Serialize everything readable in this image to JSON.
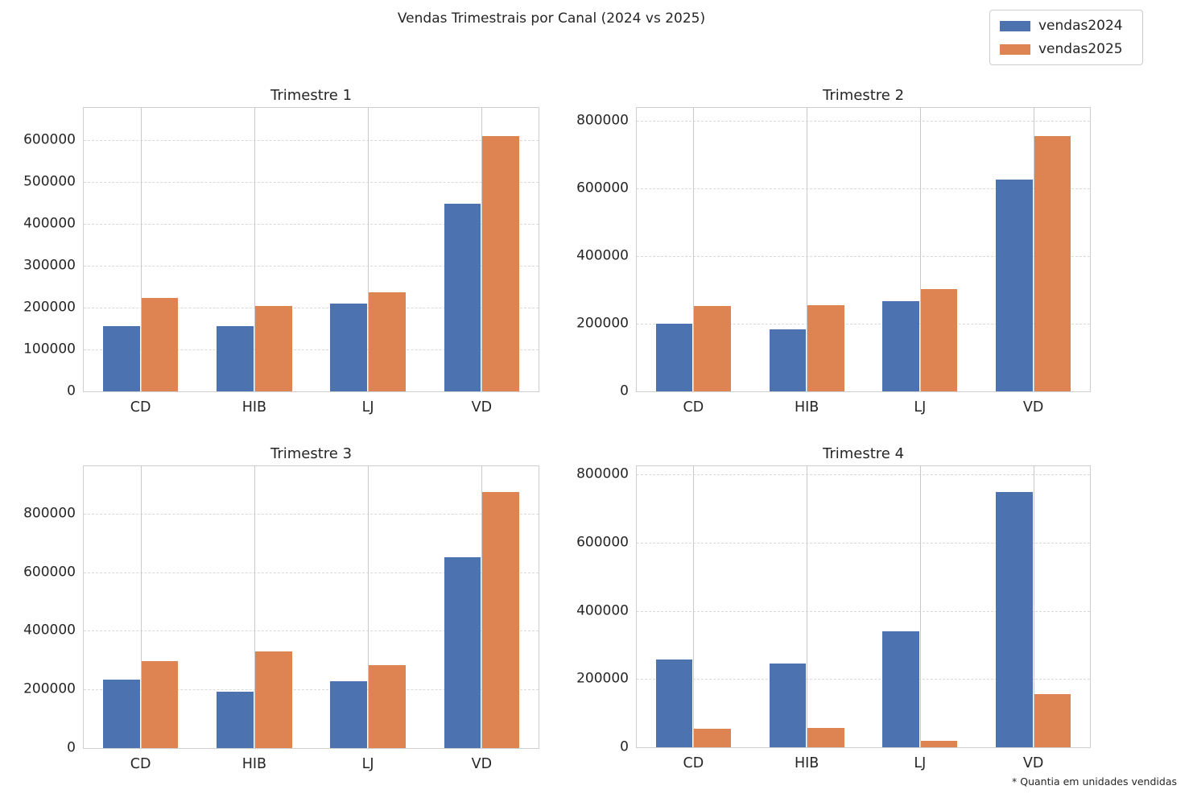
{
  "figure": {
    "title": "Vendas Trimestrais por Canal (2024 vs 2025)",
    "footnote": "* Quantia em unidades vendidas"
  },
  "legend": {
    "position": "top-right",
    "items": [
      {
        "label": "vendas2024",
        "color": "#4C72B0"
      },
      {
        "label": "vendas2025",
        "color": "#DD8452"
      }
    ]
  },
  "style": {
    "grid_x": "solid",
    "grid_y": "dashed",
    "grid_color": "#cccccc",
    "text_color": "#262626",
    "background": "#ffffff"
  },
  "chart_data": [
    {
      "type": "bar",
      "title": "Trimestre 1",
      "categories": [
        "CD",
        "HIB",
        "LJ",
        "VD"
      ],
      "series": [
        {
          "name": "vendas2024",
          "color": "#4C72B0",
          "values": [
            155000,
            155000,
            209000,
            449000
          ]
        },
        {
          "name": "vendas2025",
          "color": "#DD8452",
          "values": [
            223000,
            204000,
            236000,
            609000
          ]
        }
      ],
      "xlabel": "",
      "ylabel": "",
      "yticks": [
        0,
        100000,
        200000,
        300000,
        400000,
        500000,
        600000
      ],
      "ylim": [
        0,
        677000
      ],
      "grid": true
    },
    {
      "type": "bar",
      "title": "Trimestre 2",
      "categories": [
        "CD",
        "HIB",
        "LJ",
        "VD"
      ],
      "series": [
        {
          "name": "vendas2024",
          "color": "#4C72B0",
          "values": [
            200000,
            184000,
            267000,
            626000
          ]
        },
        {
          "name": "vendas2025",
          "color": "#DD8452",
          "values": [
            252000,
            254000,
            301000,
            755000
          ]
        }
      ],
      "xlabel": "",
      "ylabel": "",
      "yticks": [
        0,
        200000,
        400000,
        600000,
        800000
      ],
      "ylim": [
        0,
        837000
      ],
      "grid": true
    },
    {
      "type": "bar",
      "title": "Trimestre 3",
      "categories": [
        "CD",
        "HIB",
        "LJ",
        "VD"
      ],
      "series": [
        {
          "name": "vendas2024",
          "color": "#4C72B0",
          "values": [
            234000,
            193000,
            228000,
            652000
          ]
        },
        {
          "name": "vendas2025",
          "color": "#DD8452",
          "values": [
            297000,
            330000,
            284000,
            873000
          ]
        }
      ],
      "xlabel": "",
      "ylabel": "",
      "yticks": [
        0,
        200000,
        400000,
        600000,
        800000
      ],
      "ylim": [
        0,
        962000
      ],
      "grid": true
    },
    {
      "type": "bar",
      "title": "Trimestre 4",
      "categories": [
        "CD",
        "HIB",
        "LJ",
        "VD"
      ],
      "series": [
        {
          "name": "vendas2024",
          "color": "#4C72B0",
          "values": [
            257000,
            245000,
            340000,
            748000
          ]
        },
        {
          "name": "vendas2025",
          "color": "#DD8452",
          "values": [
            54000,
            56000,
            20000,
            156000
          ]
        }
      ],
      "xlabel": "",
      "ylabel": "",
      "yticks": [
        0,
        200000,
        400000,
        600000,
        800000
      ],
      "ylim": [
        0,
        824000
      ],
      "grid": true
    }
  ]
}
